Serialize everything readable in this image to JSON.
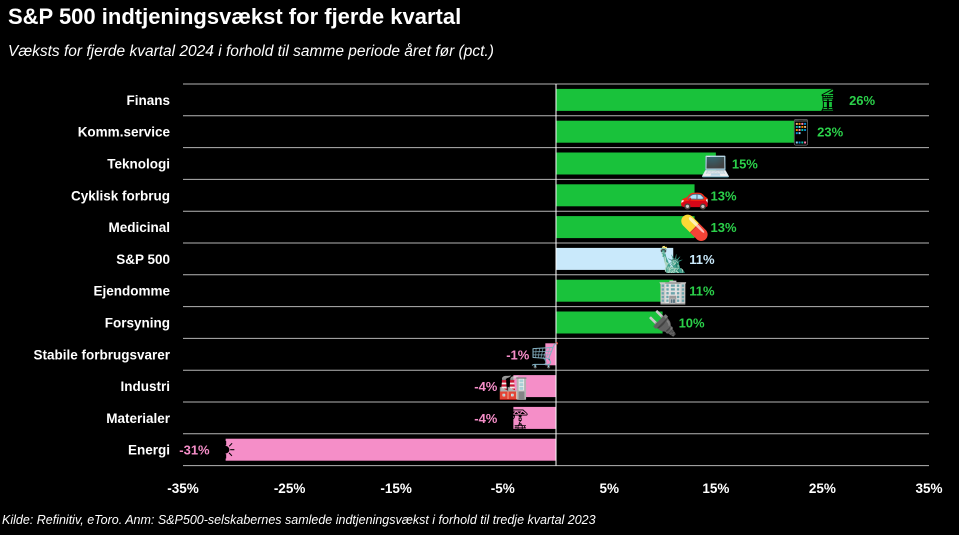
{
  "chart_data": {
    "type": "bar",
    "orientation": "horizontal",
    "title": "S&P 500 indtjeningsvækst for fjerde kvartal",
    "subtitle": "Væksts for fjerde kvartal 2024 i forhold til samme periode året før (pct.)",
    "source": "Kilde: Refinitiv, eToro. Anm: S&P500-selskabernes samlede indtjeningsvækst i forhold til tredje kvartal 2023",
    "categories": [
      "Finans",
      "Komm.service",
      "Teknologi",
      "Cyklisk forbrug",
      "Medicinal",
      "S&P 500",
      "Ejendomme",
      "Forsyning",
      "Stabile forbrugsvarer",
      "Industri",
      "Materialer",
      "Energi"
    ],
    "values": [
      26,
      23,
      15,
      13,
      13,
      11,
      11,
      10,
      -1,
      -4,
      -4,
      -31
    ],
    "value_labels": [
      "26%",
      "23%",
      "15%",
      "13%",
      "13%",
      "11%",
      "11%",
      "10%",
      "-1%",
      "-4%",
      "-4%",
      "-31%"
    ],
    "xlim": [
      -35,
      35
    ],
    "xticks": [
      -35,
      -25,
      -15,
      -5,
      5,
      15,
      25,
      35
    ],
    "xtick_labels": [
      "-35%",
      "-25%",
      "-15%",
      "-5%",
      "5%",
      "15%",
      "25%",
      "35%"
    ],
    "grid": "horizontal",
    "colors": {
      "positive": "#19c23b",
      "negative": "#f58ec8",
      "index": "#c9e9fb",
      "positive_label": "#2bd14a",
      "negative_label": "#f58ec8",
      "index_label": "#c9e9fb",
      "grid": "#b5b5b5",
      "zero_line": "#ffffff"
    },
    "icons": [
      "bank-icon",
      "phone-icon",
      "laptop-icon",
      "car-icon",
      "pill-icon",
      "statue-of-liberty-icon",
      "office-building-icon",
      "plug-icon",
      "shopping-cart-icon",
      "factory-icon",
      "construction-crane-icon",
      "sun-icon"
    ],
    "icon_glyphs": [
      "🏛",
      "📱",
      "💻",
      "🚗",
      "💊",
      "🗽",
      "🏢",
      "🔌",
      "🛒",
      "🏭",
      "🏗",
      "☀"
    ]
  }
}
